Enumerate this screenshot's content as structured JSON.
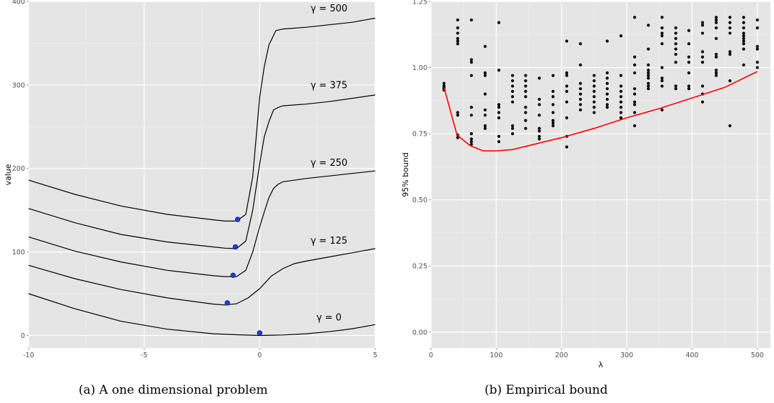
{
  "chart_data": [
    {
      "type": "line",
      "caption": "(a) A one dimensional problem",
      "ylabel": "value",
      "xlabel": "",
      "xlim": [
        -10,
        5
      ],
      "ylim": [
        -15,
        400
      ],
      "x_ticks": [
        "-10",
        "-5",
        "0",
        "5"
      ],
      "y_ticks": [
        "0",
        "100",
        "200",
        "300",
        "400"
      ],
      "grid": true,
      "series": [
        {
          "label": "γ = 0",
          "label_at": [
            3.0,
            18
          ],
          "points": [
            [
              -10,
              50
            ],
            [
              -8,
              32
            ],
            [
              -6,
              17
            ],
            [
              -4,
              7.5
            ],
            [
              -2,
              2
            ],
            [
              -1,
              0.8
            ],
            [
              0,
              0
            ],
            [
              1,
              0.6
            ],
            [
              2,
              2
            ],
            [
              3,
              4.5
            ],
            [
              4,
              8
            ],
            [
              5,
              13
            ]
          ],
          "minimum": [
            0.0,
            3
          ]
        },
        {
          "label": "γ = 125",
          "label_at": [
            3.0,
            110
          ],
          "points": [
            [
              -10,
              84
            ],
            [
              -8,
              68
            ],
            [
              -6,
              55
            ],
            [
              -4,
              45
            ],
            [
              -2,
              37.5
            ],
            [
              -1.5,
              36.5
            ],
            [
              -1,
              38
            ],
            [
              -0.5,
              45
            ],
            [
              0,
              56
            ],
            [
              0.5,
              71
            ],
            [
              1,
              80
            ],
            [
              1.5,
              86
            ],
            [
              2,
              89
            ],
            [
              3,
              94
            ],
            [
              4,
              99
            ],
            [
              5,
              104
            ]
          ],
          "minimum": [
            -1.4,
            39
          ]
        },
        {
          "label": "γ = 250",
          "label_at": [
            3.0,
            203
          ],
          "points": [
            [
              -10,
              118
            ],
            [
              -8,
              101
            ],
            [
              -6,
              88
            ],
            [
              -4,
              78
            ],
            [
              -2,
              71.5
            ],
            [
              -1.5,
              70.5
            ],
            [
              -1,
              70.5
            ],
            [
              -0.6,
              78
            ],
            [
              -0.3,
              100
            ],
            [
              0,
              130
            ],
            [
              0.2,
              148
            ],
            [
              0.4,
              165
            ],
            [
              0.6,
              176
            ],
            [
              0.8,
              181
            ],
            [
              1,
              184
            ],
            [
              2,
              188
            ],
            [
              3,
              191
            ],
            [
              4,
              194
            ],
            [
              5,
              197
            ]
          ],
          "minimum": [
            -1.15,
            72
          ]
        },
        {
          "label": "γ = 375",
          "label_at": [
            3.0,
            296
          ],
          "points": [
            [
              -10,
              152
            ],
            [
              -8,
              135
            ],
            [
              -6,
              121
            ],
            [
              -4,
              112
            ],
            [
              -2,
              106
            ],
            [
              -1.5,
              104.5
            ],
            [
              -1,
              104
            ],
            [
              -0.6,
              113
            ],
            [
              -0.3,
              150
            ],
            [
              0,
              205
            ],
            [
              0.2,
              238
            ],
            [
              0.4,
              256
            ],
            [
              0.6,
              270
            ],
            [
              0.8,
              273
            ],
            [
              1,
              275
            ],
            [
              2,
              277
            ],
            [
              3,
              280
            ],
            [
              4,
              284
            ],
            [
              5,
              288
            ]
          ],
          "minimum": [
            -1.05,
            106
          ]
        },
        {
          "label": "γ = 500",
          "label_at": [
            3.0,
            388
          ],
          "points": [
            [
              -10,
              186
            ],
            [
              -8,
              169
            ],
            [
              -6,
              155
            ],
            [
              -4,
              145
            ],
            [
              -2,
              138.5
            ],
            [
              -1.5,
              137
            ],
            [
              -1,
              137
            ],
            [
              -0.6,
              145
            ],
            [
              -0.3,
              190
            ],
            [
              0,
              285
            ],
            [
              0.2,
              322
            ],
            [
              0.4,
              348
            ],
            [
              0.7,
              365
            ],
            [
              1,
              367
            ],
            [
              2,
              369
            ],
            [
              3,
              372
            ],
            [
              4,
              375
            ],
            [
              5,
              380
            ]
          ],
          "minimum": [
            -0.95,
            139
          ]
        }
      ]
    },
    {
      "type": "scatter",
      "caption": "(b) Empirical bound",
      "xlabel": "λ",
      "ylabel": "95% bound",
      "xlim": [
        0,
        520
      ],
      "ylim": [
        -0.06,
        1.25
      ],
      "x_ticks": [
        "0",
        "100",
        "200",
        "300",
        "400",
        "500"
      ],
      "y_ticks": [
        "0.00",
        "0.25",
        "0.50",
        "0.75",
        "1.00",
        "1.25"
      ],
      "grid": true,
      "line_color": "#ff0000",
      "line": [
        [
          20,
          0.925
        ],
        [
          40,
          0.745
        ],
        [
          60,
          0.705
        ],
        [
          80,
          0.685
        ],
        [
          100,
          0.685
        ],
        [
          125,
          0.69
        ],
        [
          150,
          0.705
        ],
        [
          175,
          0.72
        ],
        [
          200,
          0.735
        ],
        [
          250,
          0.77
        ],
        [
          300,
          0.81
        ],
        [
          350,
          0.845
        ],
        [
          400,
          0.885
        ],
        [
          450,
          0.925
        ],
        [
          500,
          0.985
        ]
      ],
      "points": [
        [
          20,
          0.94
        ],
        [
          20,
          0.93
        ],
        [
          20,
          0.925
        ],
        [
          20,
          0.92
        ],
        [
          20,
          0.915
        ],
        [
          41,
          1.18
        ],
        [
          41,
          1.15
        ],
        [
          41,
          1.13
        ],
        [
          41,
          1.11
        ],
        [
          41,
          1.1
        ],
        [
          41,
          1.09
        ],
        [
          41,
          0.83
        ],
        [
          41,
          0.82
        ],
        [
          41,
          0.745
        ],
        [
          41,
          0.735
        ],
        [
          62,
          1.18
        ],
        [
          62,
          1.03
        ],
        [
          62,
          1.02
        ],
        [
          62,
          0.97
        ],
        [
          62,
          0.85
        ],
        [
          62,
          0.82
        ],
        [
          62,
          0.75
        ],
        [
          62,
          0.73
        ],
        [
          62,
          0.72
        ],
        [
          62,
          0.71
        ],
        [
          83,
          1.08
        ],
        [
          83,
          0.98
        ],
        [
          83,
          0.97
        ],
        [
          83,
          0.9
        ],
        [
          83,
          0.84
        ],
        [
          83,
          0.82
        ],
        [
          83,
          0.78
        ],
        [
          83,
          0.77
        ],
        [
          104,
          1.17
        ],
        [
          104,
          0.99
        ],
        [
          104,
          0.86
        ],
        [
          104,
          0.85
        ],
        [
          104,
          0.83
        ],
        [
          104,
          0.81
        ],
        [
          104,
          0.74
        ],
        [
          104,
          0.72
        ],
        [
          125,
          0.97
        ],
        [
          125,
          0.95
        ],
        [
          125,
          0.93
        ],
        [
          125,
          0.91
        ],
        [
          125,
          0.89
        ],
        [
          125,
          0.87
        ],
        [
          125,
          0.78
        ],
        [
          125,
          0.77
        ],
        [
          125,
          0.75
        ],
        [
          145,
          0.97
        ],
        [
          145,
          0.95
        ],
        [
          145,
          0.93
        ],
        [
          145,
          0.91
        ],
        [
          145,
          0.89
        ],
        [
          145,
          0.85
        ],
        [
          145,
          0.83
        ],
        [
          145,
          0.8
        ],
        [
          145,
          0.77
        ],
        [
          166,
          0.96
        ],
        [
          166,
          0.88
        ],
        [
          166,
          0.86
        ],
        [
          166,
          0.82
        ],
        [
          166,
          0.77
        ],
        [
          166,
          0.76
        ],
        [
          166,
          0.74
        ],
        [
          166,
          0.73
        ],
        [
          187,
          0.97
        ],
        [
          187,
          0.91
        ],
        [
          187,
          0.89
        ],
        [
          187,
          0.86
        ],
        [
          187,
          0.83
        ],
        [
          187,
          0.8
        ],
        [
          187,
          0.79
        ],
        [
          187,
          0.78
        ],
        [
          208,
          1.1
        ],
        [
          208,
          0.98
        ],
        [
          208,
          0.97
        ],
        [
          208,
          0.93
        ],
        [
          208,
          0.91
        ],
        [
          208,
          0.87
        ],
        [
          208,
          0.81
        ],
        [
          208,
          0.74
        ],
        [
          208,
          0.7
        ],
        [
          229,
          1.09
        ],
        [
          229,
          1.01
        ],
        [
          229,
          0.94
        ],
        [
          229,
          0.92
        ],
        [
          229,
          0.9
        ],
        [
          229,
          0.88
        ],
        [
          229,
          0.86
        ],
        [
          229,
          0.84
        ],
        [
          250,
          0.97
        ],
        [
          250,
          0.95
        ],
        [
          250,
          0.93
        ],
        [
          250,
          0.91
        ],
        [
          250,
          0.89
        ],
        [
          250,
          0.87
        ],
        [
          250,
          0.85
        ],
        [
          250,
          0.83
        ],
        [
          270,
          1.1
        ],
        [
          270,
          0.98
        ],
        [
          270,
          0.96
        ],
        [
          270,
          0.94
        ],
        [
          270,
          0.92
        ],
        [
          270,
          0.9
        ],
        [
          270,
          0.88
        ],
        [
          270,
          0.86
        ],
        [
          270,
          0.85
        ],
        [
          291,
          1.12
        ],
        [
          291,
          0.97
        ],
        [
          291,
          0.93
        ],
        [
          291,
          0.91
        ],
        [
          291,
          0.89
        ],
        [
          291,
          0.87
        ],
        [
          291,
          0.85
        ],
        [
          291,
          0.83
        ],
        [
          291,
          0.81
        ],
        [
          312,
          1.19
        ],
        [
          312,
          1.04
        ],
        [
          312,
          1.01
        ],
        [
          312,
          0.98
        ],
        [
          312,
          0.92
        ],
        [
          312,
          0.9
        ],
        [
          312,
          0.87
        ],
        [
          312,
          0.86
        ],
        [
          312,
          0.83
        ],
        [
          312,
          0.78
        ],
        [
          333,
          1.16
        ],
        [
          333,
          1.07
        ],
        [
          333,
          1.01
        ],
        [
          333,
          0.99
        ],
        [
          333,
          0.98
        ],
        [
          333,
          0.97
        ],
        [
          333,
          0.96
        ],
        [
          333,
          0.94
        ],
        [
          333,
          0.93
        ],
        [
          333,
          0.92
        ],
        [
          354,
          1.19
        ],
        [
          354,
          1.15
        ],
        [
          354,
          1.13
        ],
        [
          354,
          1.12
        ],
        [
          354,
          1.09
        ],
        [
          354,
          1.0
        ],
        [
          354,
          0.96
        ],
        [
          354,
          0.95
        ],
        [
          354,
          0.93
        ],
        [
          354,
          0.84
        ],
        [
          375,
          1.15
        ],
        [
          375,
          1.13
        ],
        [
          375,
          1.11
        ],
        [
          375,
          1.09
        ],
        [
          375,
          1.07
        ],
        [
          375,
          1.05
        ],
        [
          375,
          1.02
        ],
        [
          375,
          0.93
        ],
        [
          375,
          0.92
        ],
        [
          395,
          1.14
        ],
        [
          395,
          1.09
        ],
        [
          395,
          1.04
        ],
        [
          395,
          1.02
        ],
        [
          395,
          0.98
        ],
        [
          395,
          0.93
        ],
        [
          395,
          0.92
        ],
        [
          416,
          1.17
        ],
        [
          416,
          1.16
        ],
        [
          416,
          1.13
        ],
        [
          416,
          1.06
        ],
        [
          416,
          1.04
        ],
        [
          416,
          1.02
        ],
        [
          416,
          0.93
        ],
        [
          416,
          0.9
        ],
        [
          416,
          0.87
        ],
        [
          437,
          1.19
        ],
        [
          437,
          1.18
        ],
        [
          437,
          1.17
        ],
        [
          437,
          1.15
        ],
        [
          437,
          1.11
        ],
        [
          437,
          1.05
        ],
        [
          437,
          1.04
        ],
        [
          437,
          0.99
        ],
        [
          437,
          0.98
        ],
        [
          437,
          0.97
        ],
        [
          458,
          1.19
        ],
        [
          458,
          1.17
        ],
        [
          458,
          1.15
        ],
        [
          458,
          1.13
        ],
        [
          458,
          1.06
        ],
        [
          458,
          1.05
        ],
        [
          458,
          0.95
        ],
        [
          458,
          0.78
        ],
        [
          479,
          1.19
        ],
        [
          479,
          1.17
        ],
        [
          479,
          1.15
        ],
        [
          479,
          1.13
        ],
        [
          479,
          1.12
        ],
        [
          479,
          1.11
        ],
        [
          479,
          1.1
        ],
        [
          479,
          1.09
        ],
        [
          479,
          1.07
        ],
        [
          479,
          1.01
        ],
        [
          500,
          1.18
        ],
        [
          500,
          1.15
        ],
        [
          500,
          1.08
        ],
        [
          500,
          1.07
        ],
        [
          500,
          1.02
        ],
        [
          500,
          1.0
        ]
      ]
    }
  ]
}
